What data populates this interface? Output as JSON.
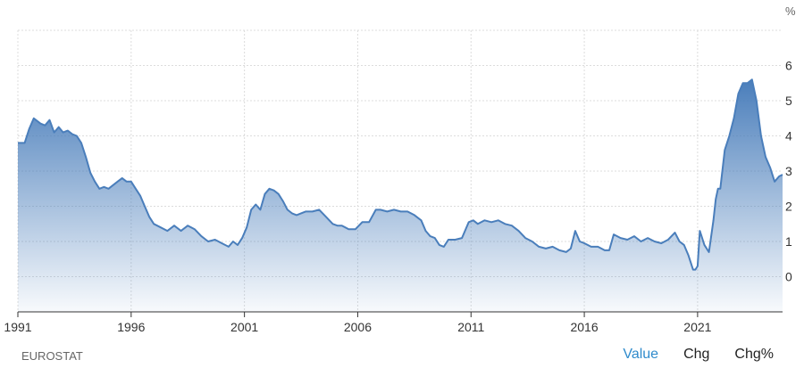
{
  "colors": {
    "line": "#4a7ebb",
    "fill_top": "#4a7ebb",
    "grid": "#dcdcdc",
    "axis": "#333333",
    "active_tab": "#2f8bcc"
  },
  "unit": "%",
  "source": "EUROSTAT",
  "tabs": [
    {
      "label": "Value",
      "active": true
    },
    {
      "label": "Chg",
      "active": false
    },
    {
      "label": "Chg%",
      "active": false
    }
  ],
  "chart_data": {
    "type": "area",
    "title": "",
    "xlabel": "",
    "ylabel": "",
    "unit": "%",
    "x_range": [
      1991.0,
      2024.75
    ],
    "ylim": [
      -1,
      7
    ],
    "x_ticks": [
      "1991",
      "1996",
      "2001",
      "2006",
      "2011",
      "2016",
      "2021"
    ],
    "y_ticks": [
      "0",
      "1",
      "2",
      "3",
      "4",
      "5",
      "6"
    ],
    "grid": true,
    "series": [
      {
        "x": [
          1991.0,
          1991.3,
          1991.5,
          1991.7,
          1992.0,
          1992.2,
          1992.4,
          1992.6,
          1992.8,
          1993.0,
          1993.2,
          1993.4,
          1993.6,
          1993.8,
          1994.0,
          1994.2,
          1994.4,
          1994.6,
          1994.8,
          1995.0,
          1995.2,
          1995.4,
          1995.6,
          1995.8,
          1996.0,
          1996.2,
          1996.4,
          1996.6,
          1996.8,
          1997.0,
          1997.3,
          1997.6,
          1997.9,
          1998.2,
          1998.5,
          1998.8,
          1999.1,
          1999.4,
          1999.7,
          2000.0,
          2000.3,
          2000.5,
          2000.7,
          2000.9,
          2001.1,
          2001.3,
          2001.5,
          2001.7,
          2001.9,
          2002.1,
          2002.3,
          2002.5,
          2002.7,
          2002.9,
          2003.1,
          2003.3,
          2003.5,
          2003.7,
          2004.0,
          2004.3,
          2004.6,
          2004.9,
          2005.1,
          2005.3,
          2005.6,
          2005.9,
          2006.2,
          2006.5,
          2006.8,
          2007.0,
          2007.3,
          2007.6,
          2007.9,
          2008.2,
          2008.5,
          2008.8,
          2009.0,
          2009.2,
          2009.4,
          2009.6,
          2009.8,
          2010.0,
          2010.3,
          2010.6,
          2010.9,
          2011.1,
          2011.3,
          2011.6,
          2011.9,
          2012.2,
          2012.5,
          2012.8,
          2013.1,
          2013.4,
          2013.7,
          2014.0,
          2014.3,
          2014.6,
          2014.9,
          2015.2,
          2015.4,
          2015.6,
          2015.8,
          2016.0,
          2016.3,
          2016.6,
          2016.9,
          2017.1,
          2017.3,
          2017.6,
          2017.9,
          2018.2,
          2018.5,
          2018.8,
          2019.1,
          2019.4,
          2019.7,
          2020.0,
          2020.2,
          2020.4,
          2020.6,
          2020.8,
          2020.9,
          2021.0,
          2021.1,
          2021.3,
          2021.5,
          2021.7,
          2021.8,
          2021.9,
          2022.0,
          2022.2,
          2022.4,
          2022.6,
          2022.8,
          2023.0,
          2023.2,
          2023.4,
          2023.6,
          2023.8,
          2024.0,
          2024.2,
          2024.4,
          2024.6,
          2024.75
        ],
        "values": [
          3.8,
          3.8,
          4.2,
          4.5,
          4.35,
          4.3,
          4.45,
          4.1,
          4.25,
          4.1,
          4.15,
          4.05,
          4.0,
          3.8,
          3.4,
          2.95,
          2.7,
          2.5,
          2.55,
          2.5,
          2.6,
          2.7,
          2.8,
          2.7,
          2.7,
          2.5,
          2.3,
          2.0,
          1.7,
          1.5,
          1.4,
          1.3,
          1.45,
          1.3,
          1.45,
          1.35,
          1.15,
          1.0,
          1.05,
          0.95,
          0.85,
          1.0,
          0.9,
          1.1,
          1.4,
          1.9,
          2.05,
          1.9,
          2.35,
          2.5,
          2.45,
          2.35,
          2.15,
          1.9,
          1.8,
          1.75,
          1.8,
          1.85,
          1.85,
          1.9,
          1.7,
          1.5,
          1.45,
          1.45,
          1.35,
          1.35,
          1.55,
          1.55,
          1.9,
          1.9,
          1.85,
          1.9,
          1.85,
          1.85,
          1.75,
          1.6,
          1.3,
          1.15,
          1.1,
          0.9,
          0.85,
          1.05,
          1.05,
          1.1,
          1.55,
          1.6,
          1.5,
          1.6,
          1.55,
          1.6,
          1.5,
          1.45,
          1.3,
          1.1,
          1.0,
          0.85,
          0.8,
          0.85,
          0.75,
          0.7,
          0.8,
          1.3,
          1.0,
          0.95,
          0.85,
          0.85,
          0.75,
          0.75,
          1.2,
          1.1,
          1.05,
          1.15,
          1.0,
          1.1,
          1.0,
          0.95,
          1.05,
          1.25,
          1.0,
          0.9,
          0.6,
          0.2,
          0.2,
          0.3,
          1.3,
          0.9,
          0.7,
          1.6,
          2.2,
          2.5,
          2.5,
          3.6,
          4.0,
          4.5,
          5.2,
          5.5,
          5.5,
          5.6,
          5.0,
          4.0,
          3.4,
          3.1,
          2.7,
          2.85,
          2.9
        ]
      }
    ]
  }
}
